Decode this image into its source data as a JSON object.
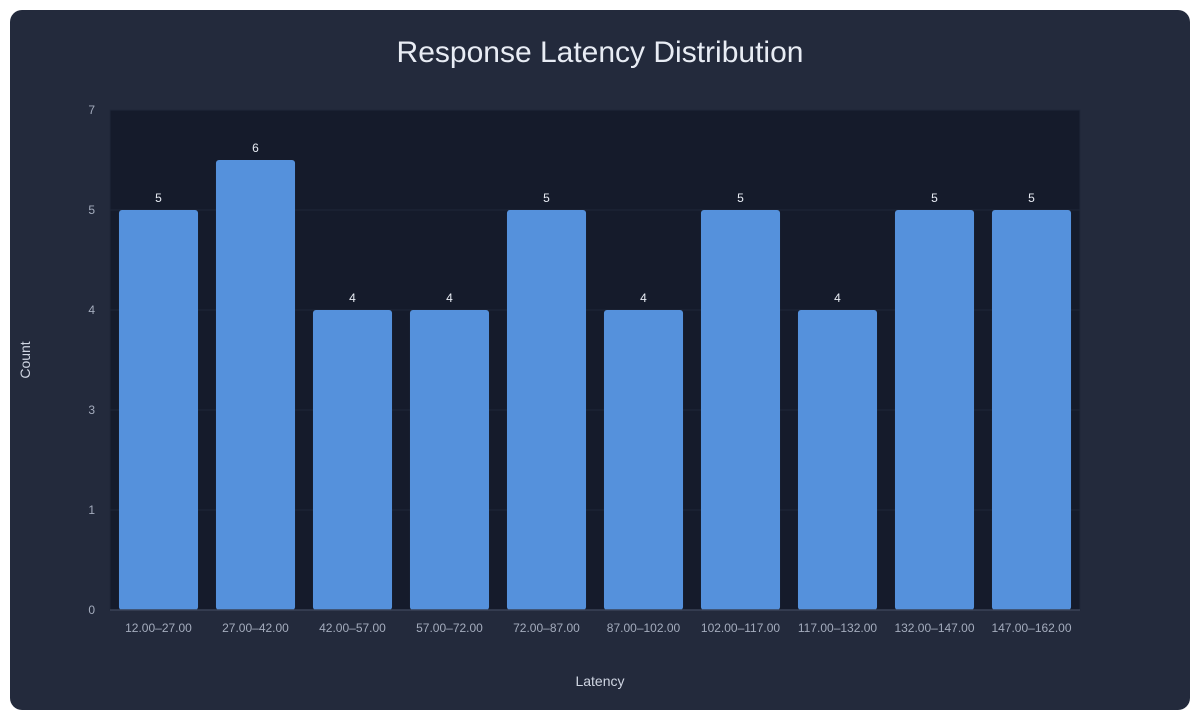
{
  "colors": {
    "card_background": "#232a3c",
    "plot_background": "#151b2b",
    "bar": "#5591dc",
    "grid": "#1f2738",
    "axis": "#3a4356"
  },
  "chart_data": {
    "type": "bar",
    "title": "Response Latency Distribution",
    "xlabel": "Latency",
    "ylabel": "Count",
    "categories": [
      "12.00–27.00",
      "27.00–42.00",
      "42.00–57.00",
      "57.00–72.00",
      "72.00–87.00",
      "87.00–102.00",
      "102.00–117.00",
      "117.00–132.00",
      "132.00–147.00",
      "147.00–162.00"
    ],
    "values": [
      5,
      6,
      4,
      4,
      5,
      4,
      5,
      4,
      5,
      5
    ],
    "y_ticks": [
      0,
      1,
      3,
      4,
      5,
      7
    ],
    "ylim": [
      0,
      7
    ],
    "grid": true,
    "legend": false
  }
}
